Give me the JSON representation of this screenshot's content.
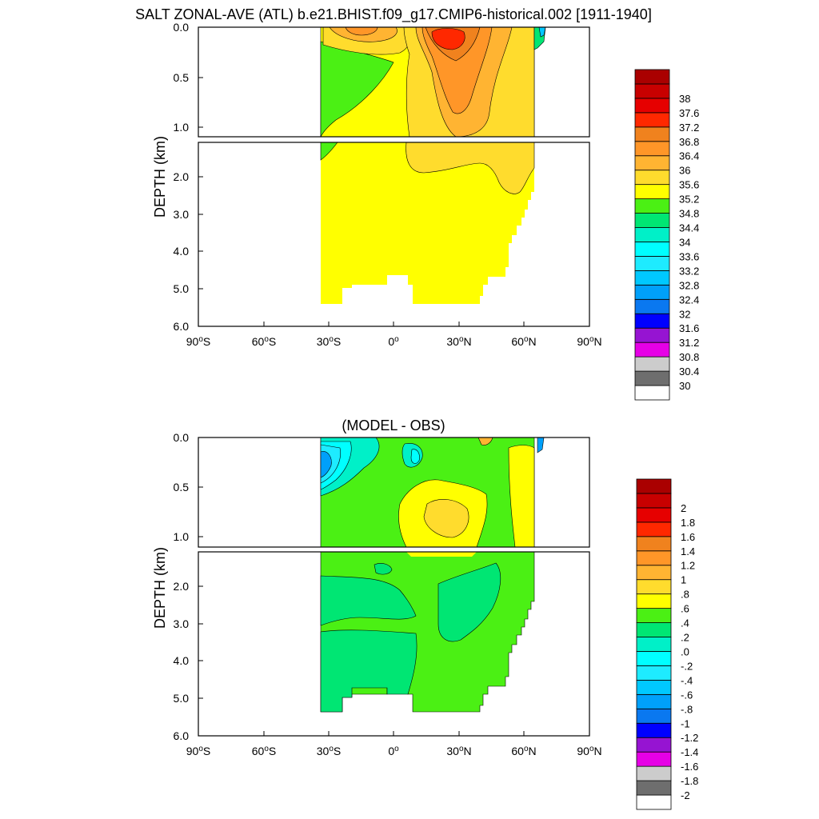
{
  "chart_data": [
    {
      "type": "heatmap",
      "title": "SALT ZONAL-AVE (ATL) b.e21.BHIST.f09_g17.CMIP6-historical.002 [1911-1940]",
      "ylabel": "DEPTH (km)",
      "upper_yticks": [
        "0.0",
        "0.5",
        "1.0"
      ],
      "lower_yticks": [
        "2.0",
        "3.0",
        "4.0",
        "5.0",
        "6.0"
      ],
      "xticks": [
        {
          "deg": "90",
          "hemi": "S"
        },
        {
          "deg": "60",
          "hemi": "S"
        },
        {
          "deg": "30",
          "hemi": "S"
        },
        {
          "deg": "0",
          "hemi": ""
        },
        {
          "deg": "30",
          "hemi": "N"
        },
        {
          "deg": "60",
          "hemi": "N"
        },
        {
          "deg": "90",
          "hemi": "N"
        }
      ],
      "upper_depth_range_km": [
        0.0,
        1.1
      ],
      "lower_depth_range_km": [
        1.2,
        6.0
      ],
      "lat_range": [
        -90,
        90
      ],
      "colorbar_labels": [
        "30",
        "30.4",
        "30.8",
        "31.2",
        "31.6",
        "32",
        "32.4",
        "32.8",
        "33.2",
        "33.6",
        "34",
        "34.4",
        "34.8",
        "35.2",
        "35.6",
        "36",
        "36.4",
        "36.8",
        "37.2",
        "37.6",
        "38"
      ],
      "colorbar_colors": [
        "#ffffff",
        "#6e6e6e",
        "#cccccc",
        "#e600e6",
        "#9614d2",
        "#0000ff",
        "#0a78f0",
        "#00a0fa",
        "#00c8ff",
        "#1eebff",
        "#00ffff",
        "#00f0c8",
        "#00e673",
        "#4bf014",
        "#ffff00",
        "#ffdc2d",
        "#ffb432",
        "#ff9628",
        "#f0821e",
        "#ff2800",
        "#e60000",
        "#c80000",
        "#aa0000"
      ],
      "field_description": "Atlantic zonal-average salinity (psu) vs latitude and depth, data present from about 34S to 66N",
      "values_summary": {
        "deep_ocean": 34.9,
        "subtropical_north_surface_max": 37.6,
        "subtropical_south_surface": 36.4,
        "intermediate_water_south": 34.4,
        "arctic_surface_min": 32.8
      }
    },
    {
      "type": "heatmap",
      "title": "(MODEL - OBS)",
      "ylabel": "DEPTH (km)",
      "upper_yticks": [
        "0.0",
        "0.5",
        "1.0"
      ],
      "lower_yticks": [
        "2.0",
        "3.0",
        "4.0",
        "5.0",
        "6.0"
      ],
      "xticks": [
        {
          "deg": "90",
          "hemi": "S"
        },
        {
          "deg": "60",
          "hemi": "S"
        },
        {
          "deg": "30",
          "hemi": "S"
        },
        {
          "deg": "0",
          "hemi": ""
        },
        {
          "deg": "30",
          "hemi": "N"
        },
        {
          "deg": "60",
          "hemi": "N"
        },
        {
          "deg": "90",
          "hemi": "N"
        }
      ],
      "upper_depth_range_km": [
        0.0,
        1.1
      ],
      "lower_depth_range_km": [
        1.2,
        6.0
      ],
      "lat_range": [
        -90,
        90
      ],
      "colorbar_labels": [
        "-2",
        "-1.8",
        "-1.6",
        "-1.4",
        "-1.2",
        "-1",
        "-.8",
        "-.6",
        "-.4",
        "-.2",
        ".0",
        ".2",
        ".4",
        ".6",
        ".8",
        "1",
        "1.2",
        "1.4",
        "1.6",
        "1.8",
        "2"
      ],
      "colorbar_colors": [
        "#ffffff",
        "#6e6e6e",
        "#cccccc",
        "#e600e6",
        "#9614d2",
        "#0000ff",
        "#0a78f0",
        "#00a0fa",
        "#00c8ff",
        "#1eebff",
        "#00ffff",
        "#00f0c8",
        "#00e673",
        "#4bf014",
        "#ffff00",
        "#ffdc2d",
        "#ffb432",
        "#ff9628",
        "#f0821e",
        "#ff2800",
        "#e60000",
        "#c80000",
        "#aa0000"
      ],
      "field_description": "Model minus observations salinity difference (psu), Atlantic zonal average",
      "values_summary": {
        "deep_ocean": 0.2,
        "subtropical_intermediate_max": 0.7,
        "southern_surface_min": -0.8,
        "eastern_north_band": 0.5
      }
    }
  ]
}
